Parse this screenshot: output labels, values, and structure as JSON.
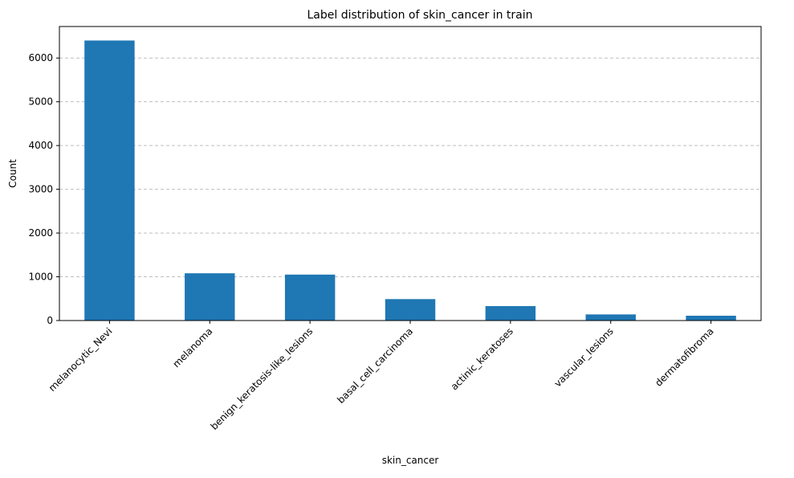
{
  "chart_data": {
    "type": "bar",
    "title": "Label distribution of skin_cancer in train",
    "xlabel": "skin_cancer",
    "ylabel": "Count",
    "categories": [
      "melanocytic_Nevi",
      "melanoma",
      "benign_keratosis-like_lesions",
      "basal_cell_carcinoma",
      "actinic_keratoses",
      "vascular_lesions",
      "dermatofibroma"
    ],
    "values": [
      6400,
      1080,
      1050,
      490,
      330,
      140,
      110
    ],
    "ylim": [
      0,
      6720
    ],
    "yticks": [
      0,
      1000,
      2000,
      3000,
      4000,
      5000,
      6000
    ],
    "grid": "y-dashed",
    "bar_color": "#1f77b4",
    "legend": "none"
  }
}
